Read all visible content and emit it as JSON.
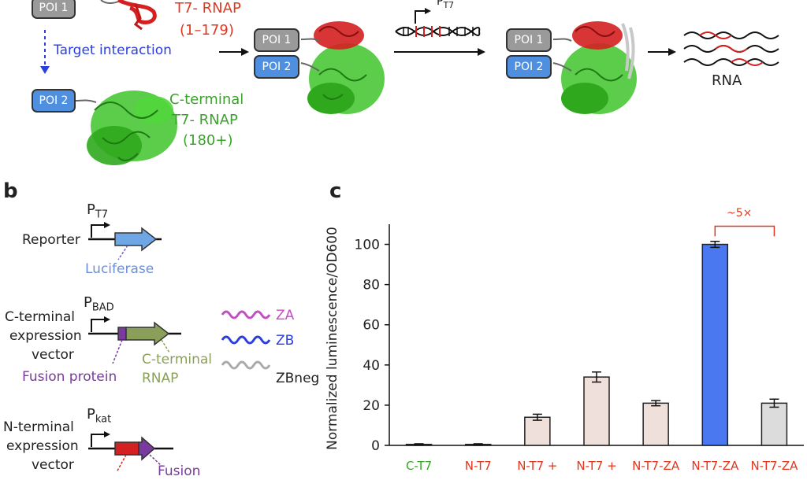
{
  "panel_a": {
    "poi1": "POI 1",
    "poi2": "POI 2",
    "n_terminal_name": "T7- RNAP",
    "n_terminal_range": "(1–179)",
    "target_interaction": "Target interaction",
    "c_terminal_line1": "C-terminal",
    "c_terminal_line2": "T7- RNAP",
    "c_terminal_range": "(180+)",
    "promoter_label": "P",
    "promoter_sub": "T7",
    "rna_label": "RNA"
  },
  "panel_b": {
    "label": "b",
    "reporter_label": "Reporter",
    "promoter_t7_main": "P",
    "promoter_t7_sub": "T7",
    "luciferase_label": "Luciferase",
    "c_vector_line1": "C-terminal",
    "c_vector_line2": "expression",
    "c_vector_line3": "vector",
    "promoter_bad_main": "P",
    "promoter_bad_sub": "BAD",
    "fusion_protein_label": "Fusion protein",
    "c_rnap_line1": "C-terminal",
    "c_rnap_line2": "RNAP",
    "za_label": "ZA",
    "zb_label": "ZB",
    "zbneg_label": "ZBneg",
    "n_vector_line1": "N-terminal",
    "n_vector_line2": "expression",
    "n_vector_line3": "vector",
    "promoter_kat_main": "P",
    "promoter_kat_sub": "kat",
    "fusion_cut_label": "Fusion"
  },
  "panel_c": {
    "label": "c",
    "annotation": "~5×",
    "chart_data": {
      "type": "bar",
      "categories": [
        "C-T7",
        "N-T7",
        "N-T7 +",
        "N-T7 +",
        "N-T7-ZA",
        "N-T7-ZA",
        "N-T7-ZA"
      ],
      "values": [
        0.5,
        0.5,
        14,
        34,
        21,
        100,
        21
      ],
      "errors": [
        0.3,
        0.3,
        1.5,
        2.5,
        1.3,
        1.5,
        2.0
      ],
      "ylabel": "Normalized luminescence/OD600",
      "ylim": [
        0,
        110
      ],
      "yticks": [
        0,
        20,
        40,
        60,
        80,
        100
      ],
      "bar_colors": [
        "#f0e0dc",
        "#f0e0dc",
        "#f0e0dc",
        "#f0e0dc",
        "#f0e0dc",
        "#4a78f0",
        "#dcdcdc"
      ]
    }
  }
}
